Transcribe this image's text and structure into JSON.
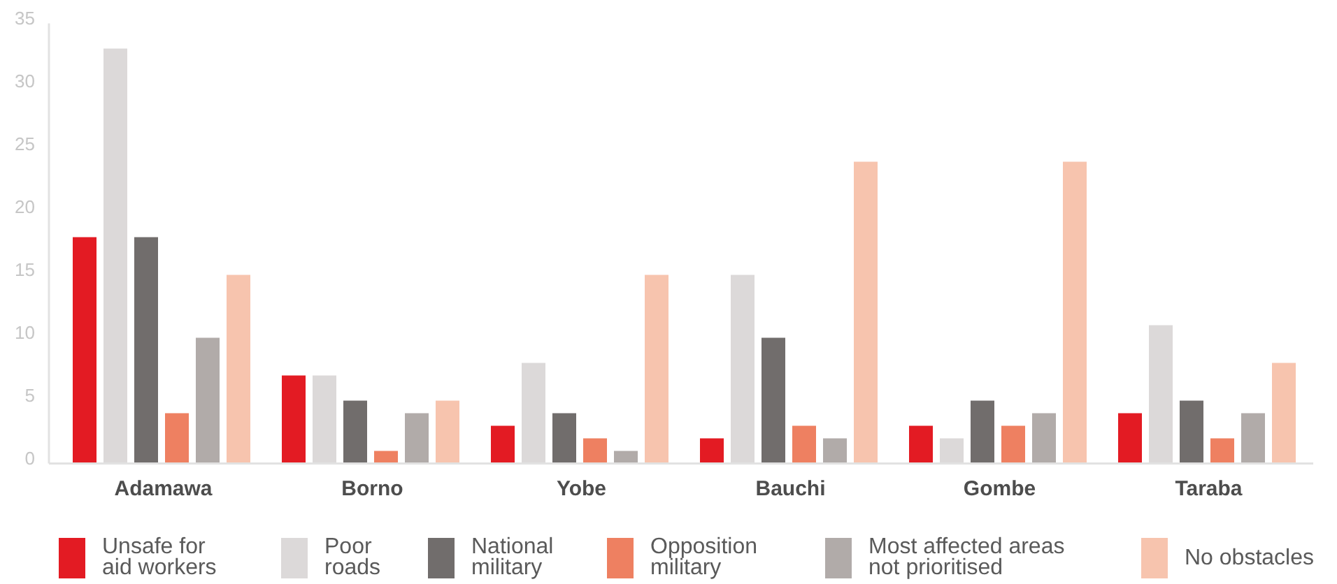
{
  "chart_data": {
    "type": "bar",
    "categories": [
      "Adamawa",
      "Borno",
      "Yobe",
      "Bauchi",
      "Gombe",
      "Taraba"
    ],
    "series": [
      {
        "name": "Unsafe for aid workers",
        "color": "#e31b23",
        "values": [
          18,
          7,
          3,
          2,
          3,
          4
        ]
      },
      {
        "name": "Poor roads",
        "color": "#dcd9d9",
        "values": [
          33,
          7,
          8,
          15,
          2,
          11
        ]
      },
      {
        "name": "National military",
        "color": "#716d6c",
        "values": [
          18,
          5,
          4,
          10,
          5,
          5
        ]
      },
      {
        "name": "Opposition military",
        "color": "#ee8061",
        "values": [
          4,
          1,
          2,
          3,
          3,
          2
        ]
      },
      {
        "name": "Most affected areas not prioritised",
        "color": "#b1aba9",
        "values": [
          10,
          4,
          1,
          2,
          4,
          4
        ]
      },
      {
        "name": "No obstacles",
        "color": "#f7c4ae",
        "values": [
          15,
          5,
          15,
          24,
          24,
          8
        ]
      }
    ],
    "ylim": [
      0,
      35
    ],
    "yticks": [
      0,
      5,
      10,
      15,
      20,
      25,
      30,
      35
    ],
    "legend": "bottom"
  }
}
